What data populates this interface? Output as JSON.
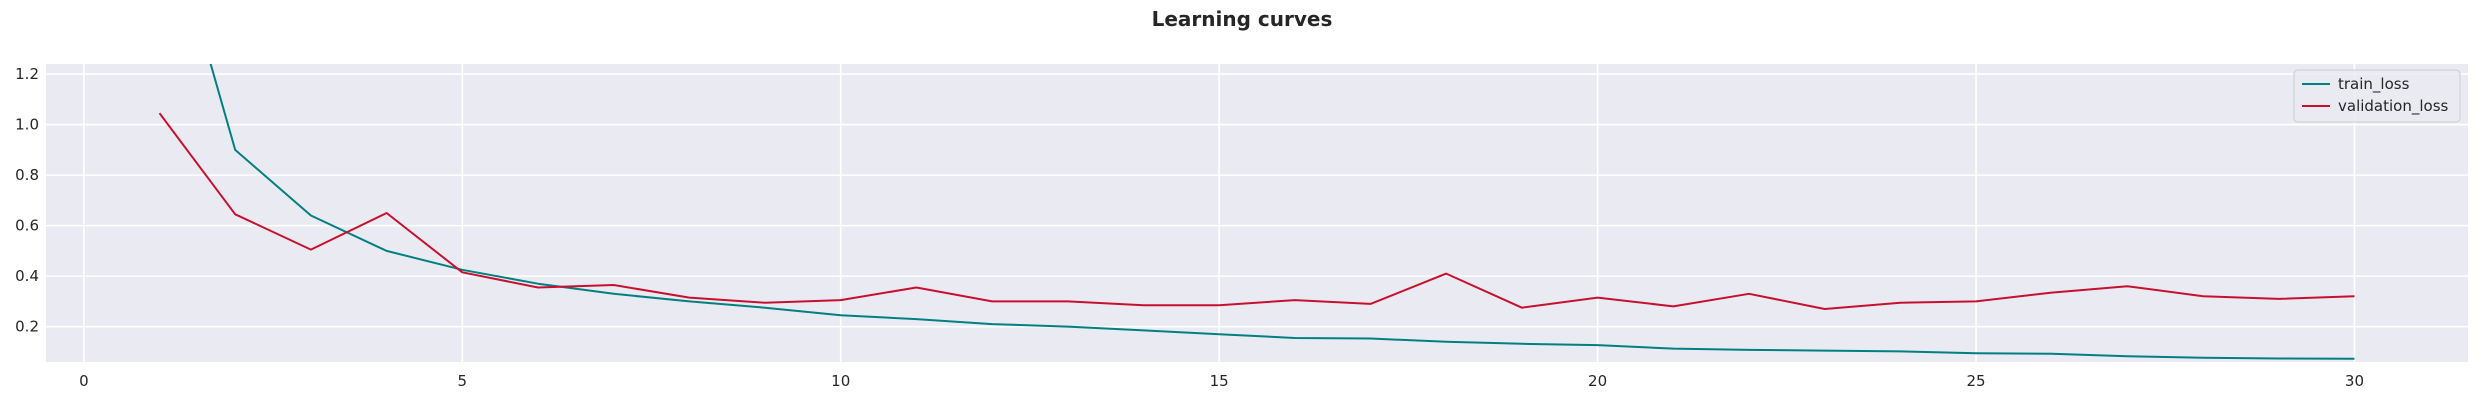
{
  "chart_data": {
    "type": "line",
    "title": "Learning curves",
    "xlabel": "",
    "ylabel": "",
    "xlim": [
      -0.5,
      31.5
    ],
    "ylim": [
      0.06,
      1.24
    ],
    "xticks": [
      0,
      5,
      10,
      15,
      20,
      25,
      30
    ],
    "yticks": [
      0.2,
      0.4,
      0.6,
      0.8,
      1.0,
      1.2
    ],
    "ytick_labels": [
      "0.2",
      "0.4",
      "0.6",
      "0.8",
      "1.0",
      "1.2"
    ],
    "grid": true,
    "legend_position": "top-right",
    "series": [
      {
        "name": "train_loss",
        "color": "#008080",
        "x": [
          1,
          2,
          3,
          4,
          5,
          6,
          7,
          8,
          9,
          10,
          11,
          12,
          13,
          14,
          15,
          16,
          17,
          18,
          19,
          20,
          21,
          22,
          23,
          24,
          25,
          26,
          27,
          28,
          29,
          30
        ],
        "values": [
          1.95,
          0.9,
          0.64,
          0.5,
          0.425,
          0.37,
          0.33,
          0.3,
          0.275,
          0.245,
          0.23,
          0.21,
          0.2,
          0.185,
          0.17,
          0.155,
          0.153,
          0.14,
          0.132,
          0.127,
          0.113,
          0.108,
          0.105,
          0.102,
          0.095,
          0.093,
          0.083,
          0.077,
          0.074,
          0.073
        ]
      },
      {
        "name": "validation_loss",
        "color": "#c8102e",
        "x": [
          1,
          2,
          3,
          4,
          5,
          6,
          7,
          8,
          9,
          10,
          11,
          12,
          13,
          14,
          15,
          16,
          17,
          18,
          19,
          20,
          21,
          22,
          23,
          24,
          25,
          26,
          27,
          28,
          29,
          30
        ],
        "values": [
          1.045,
          0.645,
          0.505,
          0.65,
          0.415,
          0.355,
          0.365,
          0.315,
          0.295,
          0.305,
          0.355,
          0.3,
          0.3,
          0.285,
          0.285,
          0.305,
          0.29,
          0.41,
          0.275,
          0.315,
          0.28,
          0.33,
          0.27,
          0.295,
          0.3,
          0.335,
          0.36,
          0.32,
          0.31,
          0.32
        ]
      }
    ]
  }
}
